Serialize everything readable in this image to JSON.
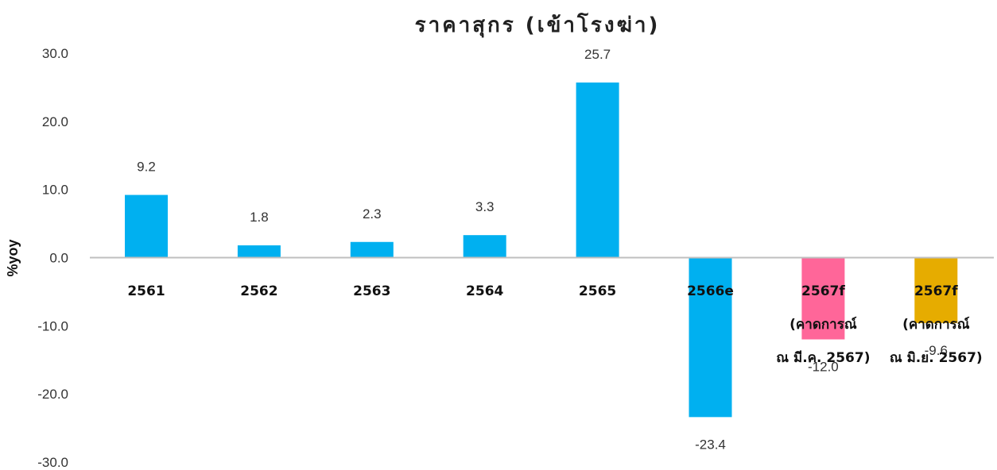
{
  "chart_data": {
    "type": "bar",
    "title": "ราคาสุกร (เข้าโรงฆ่า)",
    "ylabel": "%yoy",
    "xlabel": "",
    "ylim": [
      -30,
      30
    ],
    "yticks": [
      "30.0",
      "20.0",
      "10.0",
      "0.0",
      "-10.0",
      "-20.0",
      "-30.0"
    ],
    "grid": false,
    "legend": "none",
    "categories": [
      [
        "2561"
      ],
      [
        "2562"
      ],
      [
        "2563"
      ],
      [
        "2564"
      ],
      [
        "2565"
      ],
      [
        "2566e"
      ],
      [
        "2567f",
        "(คาดการณ์",
        "ณ มี.ค. 2567)"
      ],
      [
        "2567f",
        "(คาดการณ์",
        "ณ มิ.ย. 2567)"
      ]
    ],
    "values": [
      9.2,
      1.8,
      2.3,
      3.3,
      25.7,
      -23.4,
      -12.0,
      -9.6
    ],
    "data_labels": [
      "9.2",
      "1.8",
      "2.3",
      "3.3",
      "25.7",
      "-23.4",
      "-12.0",
      "-9.6"
    ],
    "colors": [
      "#00b0f0",
      "#00b0f0",
      "#00b0f0",
      "#00b0f0",
      "#00b0f0",
      "#00b0f0",
      "#ff6699",
      "#e6ac00"
    ],
    "axis_color": "#bfbfbf"
  }
}
